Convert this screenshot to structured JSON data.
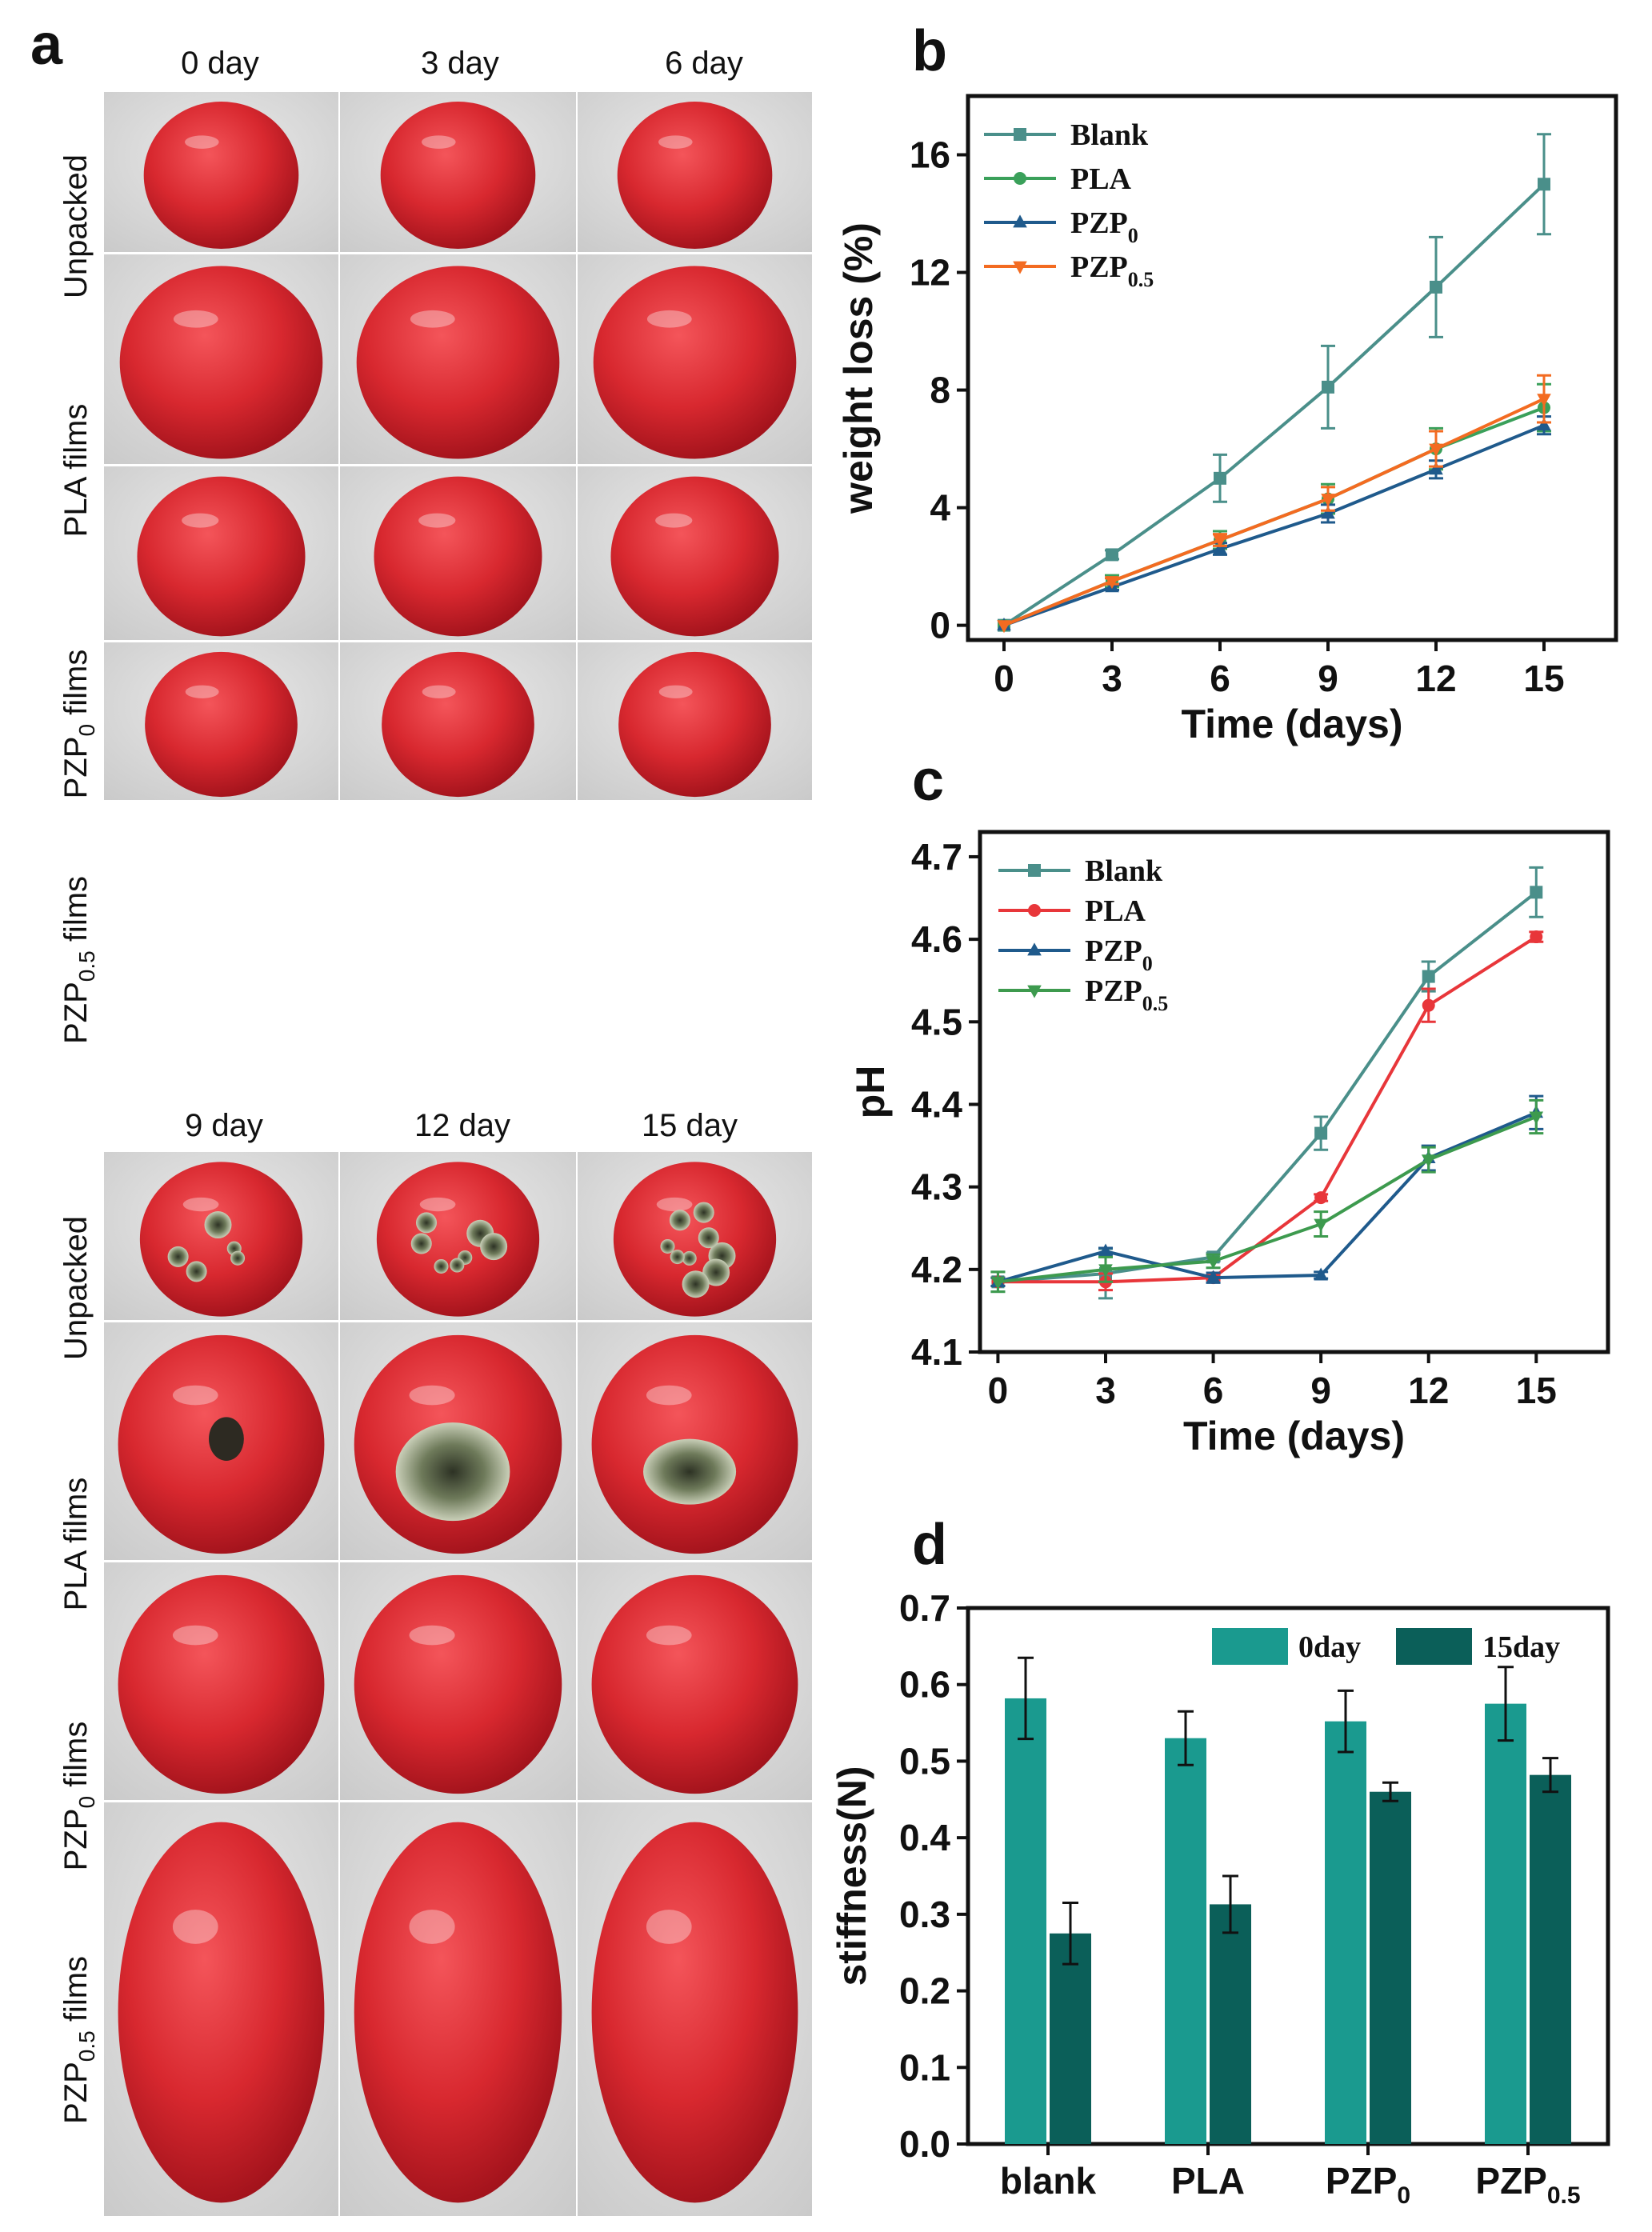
{
  "figure": {
    "panel_letters": [
      "a",
      "b",
      "c",
      "d"
    ]
  },
  "photo_panel": {
    "top_days": [
      "0 day",
      "3 day",
      "6 day"
    ],
    "bottom_days": [
      "9 day",
      "12 day",
      "15 day"
    ],
    "rows": [
      {
        "main": "Unpacked",
        "sub": "",
        "tail": ""
      },
      {
        "main": "PLA films",
        "sub": "",
        "tail": ""
      },
      {
        "main": "PZP",
        "sub": "0",
        "tail": " films"
      },
      {
        "main": "PZP",
        "sub": "0.5",
        "tail": " films"
      }
    ],
    "colors": {
      "tomato": "#d8282f",
      "tomato_dark": "#a3121b",
      "mold": "#6b7a52",
      "background": "#d9d9d9"
    }
  },
  "chart_data": [
    {
      "id": "b",
      "type": "line",
      "xlabel": "Time (days)",
      "ylabel": "weight loss (%)",
      "x": [
        0,
        3,
        6,
        9,
        12,
        15
      ],
      "xlim": [
        -1,
        17
      ],
      "ylim": [
        -0.5,
        18
      ],
      "yticks": [
        0,
        4,
        8,
        12,
        16
      ],
      "legend_position": "top-left",
      "series": [
        {
          "name": "Blank",
          "label_main": "Blank",
          "label_sub": "",
          "color": "#4a8f8a",
          "marker": "square",
          "values": [
            0,
            2.4,
            5.0,
            8.1,
            11.5,
            15.0
          ],
          "errors": [
            0,
            0.15,
            0.8,
            1.4,
            1.7,
            1.7
          ]
        },
        {
          "name": "PLA",
          "label_main": "PLA",
          "label_sub": "",
          "color": "#3aa05a",
          "marker": "circle",
          "values": [
            0,
            1.5,
            2.9,
            4.3,
            6.0,
            7.4
          ],
          "errors": [
            0,
            0.2,
            0.3,
            0.5,
            0.7,
            0.8
          ]
        },
        {
          "name": "PZP0",
          "label_main": "PZP",
          "label_sub": "0",
          "color": "#1f5a8c",
          "marker": "triangle-up",
          "values": [
            0,
            1.3,
            2.6,
            3.8,
            5.3,
            6.8
          ],
          "errors": [
            0,
            0.1,
            0.2,
            0.3,
            0.3,
            0.3
          ]
        },
        {
          "name": "PZP0.5",
          "label_main": "PZP",
          "label_sub": "0.5",
          "color": "#f36b21",
          "marker": "triangle-down",
          "values": [
            0,
            1.5,
            2.9,
            4.3,
            6.0,
            7.7
          ],
          "errors": [
            0,
            0.1,
            0.2,
            0.4,
            0.6,
            0.8
          ]
        }
      ]
    },
    {
      "id": "c",
      "type": "line",
      "xlabel": "Time (days)",
      "ylabel": "pH",
      "x": [
        0,
        3,
        6,
        9,
        12,
        15
      ],
      "xlim": [
        -0.5,
        17
      ],
      "ylim": [
        4.1,
        4.73
      ],
      "yticks": [
        4.1,
        4.2,
        4.3,
        4.4,
        4.5,
        4.6,
        4.7
      ],
      "legend_position": "top-left",
      "series": [
        {
          "name": "Blank",
          "label_main": "Blank",
          "label_sub": "",
          "color": "#4a8f8a",
          "marker": "square",
          "values": [
            4.185,
            4.195,
            4.215,
            4.365,
            4.555,
            4.657
          ],
          "errors": [
            0.012,
            0.03,
            0.005,
            0.02,
            0.018,
            0.03
          ]
        },
        {
          "name": "PLA",
          "label_main": "PLA",
          "label_sub": "",
          "color": "#e8363a",
          "marker": "circle",
          "values": [
            4.185,
            4.185,
            4.19,
            4.287,
            4.52,
            4.603
          ],
          "errors": [
            0.005,
            0.01,
            0.003,
            0.004,
            0.02,
            0.006
          ]
        },
        {
          "name": "PZP0",
          "label_main": "PZP",
          "label_sub": "0",
          "color": "#1f5a8c",
          "marker": "triangle-up",
          "values": [
            4.185,
            4.222,
            4.19,
            4.193,
            4.335,
            4.39
          ],
          "errors": [
            0.005,
            0.004,
            0.006,
            0.004,
            0.015,
            0.02
          ]
        },
        {
          "name": "PZP0.5",
          "label_main": "PZP",
          "label_sub": "0.5",
          "color": "#3d9a4e",
          "marker": "triangle-down",
          "values": [
            4.185,
            4.2,
            4.21,
            4.255,
            4.333,
            4.385
          ],
          "errors": [
            0.012,
            0.015,
            0.008,
            0.015,
            0.015,
            0.02
          ]
        }
      ]
    },
    {
      "id": "d",
      "type": "bar",
      "ylabel": "stiffness(N)",
      "categories": [
        {
          "main": "blank",
          "sub": ""
        },
        {
          "main": "PLA",
          "sub": ""
        },
        {
          "main": "PZP",
          "sub": "0"
        },
        {
          "main": "PZP",
          "sub": "0.5"
        }
      ],
      "ylim": [
        0,
        0.7
      ],
      "yticks": [
        0.0,
        0.1,
        0.2,
        0.3,
        0.4,
        0.5,
        0.6,
        0.7
      ],
      "legend_position": "top-right",
      "series": [
        {
          "name": "0day",
          "color": "#1a9a8f",
          "values": [
            0.582,
            0.53,
            0.552,
            0.575
          ],
          "errors": [
            0.053,
            0.035,
            0.04,
            0.048
          ]
        },
        {
          "name": "15day",
          "color": "#0b5f59",
          "values": [
            0.275,
            0.313,
            0.46,
            0.482
          ],
          "errors": [
            0.04,
            0.037,
            0.012,
            0.022
          ]
        }
      ]
    }
  ]
}
